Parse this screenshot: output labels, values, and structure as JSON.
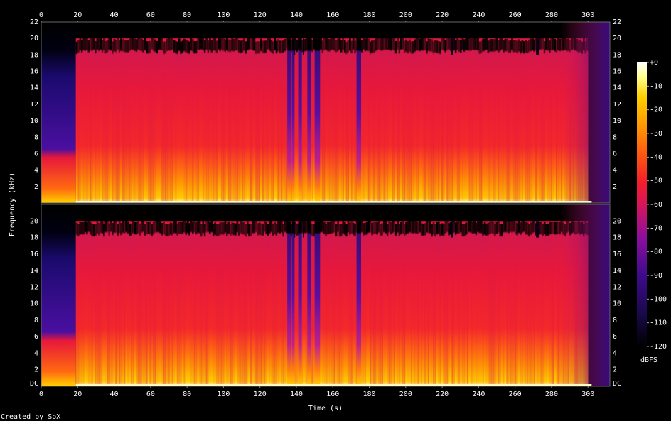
{
  "chart_data": {
    "type": "heatmap",
    "title": "",
    "xlabel": "Time (s)",
    "ylabel": "Frequency (kHz)",
    "xlim": [
      0,
      312
    ],
    "ylim": [
      0,
      22
    ],
    "x_ticks": [
      "0",
      "20",
      "40",
      "60",
      "80",
      "100",
      "120",
      "140",
      "160",
      "180",
      "200",
      "220",
      "240",
      "260",
      "280",
      "300"
    ],
    "y_ticks_upper": [
      "2",
      "4",
      "6",
      "8",
      "10",
      "12",
      "14",
      "16",
      "18",
      "20",
      "22"
    ],
    "y_ticks_lower": [
      "DC",
      "2",
      "4",
      "6",
      "8",
      "10",
      "12",
      "14",
      "16",
      "18",
      "20"
    ],
    "channels": 2,
    "colorbar": {
      "label": "dBFS",
      "range": [
        -120,
        0
      ],
      "ticks": [
        "+0",
        "-10",
        "-20",
        "-30",
        "-40",
        "-50",
        "-60",
        "-70",
        "-80",
        "-90",
        "-100",
        "-110",
        "-120"
      ]
    },
    "colors": {
      "background": "#000000",
      "colormap": [
        "#000000",
        "#1a0a4d",
        "#3d0b8c",
        "#8a0f9e",
        "#d8155a",
        "#f51f2a",
        "#ff5a10",
        "#ff9a00",
        "#ffd000",
        "#ffff90",
        "#ffffff"
      ]
    }
  },
  "footer": {
    "credit": "Created by SoX"
  }
}
